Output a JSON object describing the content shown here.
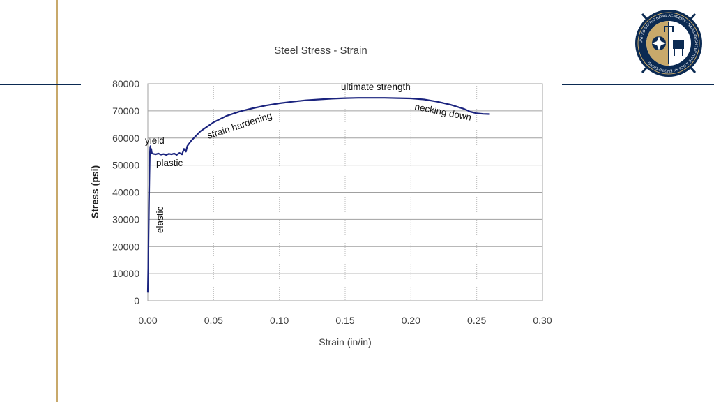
{
  "slide": {
    "accent_gold": "#c8a96b",
    "accent_navy": "#0b2a52",
    "logo": {
      "name": "usna-naval-architecture-ocean-engineering-seal",
      "text": "UNITED STATES NAVAL ACADEMY · NAVAL ARCHITECTURE & OCEAN ENGINEERING"
    }
  },
  "chart_data": {
    "type": "line",
    "title": "Steel Stress - Strain",
    "xlabel": "Strain (in/in)",
    "ylabel": "Stress (psi)",
    "xlim": [
      0,
      0.3
    ],
    "ylim": [
      0,
      80000
    ],
    "xticks": [
      "0.00",
      "0.05",
      "0.10",
      "0.15",
      "0.20",
      "0.25",
      "0.30"
    ],
    "yticks": [
      "0",
      "10000",
      "20000",
      "30000",
      "40000",
      "50000",
      "60000",
      "70000",
      "80000"
    ],
    "grid": true,
    "line_color": "#1a237e",
    "series": [
      {
        "x": [
          0.0,
          0.0003,
          0.0006,
          0.0009,
          0.0012,
          0.0015,
          0.0018,
          0.002,
          0.0023,
          0.0026,
          0.003,
          0.004,
          0.006,
          0.008,
          0.01,
          0.012,
          0.014,
          0.016,
          0.018,
          0.02,
          0.022,
          0.024,
          0.026,
          0.0275,
          0.029,
          0.03,
          0.033,
          0.04,
          0.05,
          0.06,
          0.07,
          0.08,
          0.09,
          0.1,
          0.11,
          0.12,
          0.13,
          0.14,
          0.15,
          0.16,
          0.17,
          0.18,
          0.19,
          0.2,
          0.21,
          0.22,
          0.23,
          0.24,
          0.245,
          0.25,
          0.255,
          0.26
        ],
        "y": [
          3000,
          12000,
          24000,
          36000,
          46000,
          53000,
          56500,
          57000,
          55000,
          56000,
          54500,
          54200,
          54000,
          54300,
          53900,
          54100,
          53800,
          54200,
          54000,
          54300,
          53800,
          54500,
          54000,
          56000,
          55000,
          57000,
          59000,
          62500,
          65800,
          68200,
          69800,
          71000,
          72000,
          72800,
          73400,
          73900,
          74200,
          74500,
          74700,
          74800,
          74800,
          74800,
          74700,
          74600,
          74200,
          73400,
          72300,
          70800,
          69700,
          69100,
          68900,
          68800
        ]
      }
    ],
    "annotations": [
      "yield",
      "plastic",
      "elastic",
      "strain hardening",
      "ultimate strength",
      "necking down"
    ]
  }
}
